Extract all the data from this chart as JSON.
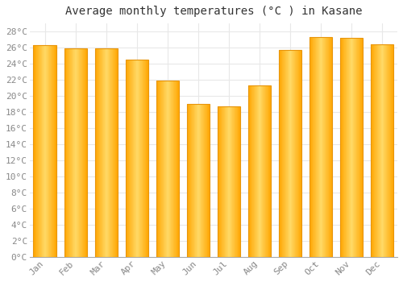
{
  "title": "Average monthly temperatures (°C ) in Kasane",
  "months": [
    "Jan",
    "Feb",
    "Mar",
    "Apr",
    "May",
    "Jun",
    "Jul",
    "Aug",
    "Sep",
    "Oct",
    "Nov",
    "Dec"
  ],
  "values": [
    26.3,
    25.9,
    25.9,
    24.5,
    21.9,
    19.0,
    18.7,
    21.3,
    25.7,
    27.3,
    27.2,
    26.4
  ],
  "bar_color_center": "#FFD966",
  "bar_color_edge": "#FFA500",
  "ylim": [
    0,
    29
  ],
  "yticks": [
    0,
    2,
    4,
    6,
    8,
    10,
    12,
    14,
    16,
    18,
    20,
    22,
    24,
    26,
    28
  ],
  "ytick_labels": [
    "0°C",
    "2°C",
    "4°C",
    "6°C",
    "8°C",
    "10°C",
    "12°C",
    "14°C",
    "16°C",
    "18°C",
    "20°C",
    "22°C",
    "24°C",
    "26°C",
    "28°C"
  ],
  "background_color": "#FFFFFF",
  "grid_color": "#E8E8E8",
  "title_fontsize": 10,
  "tick_fontsize": 8,
  "bar_width": 0.75
}
